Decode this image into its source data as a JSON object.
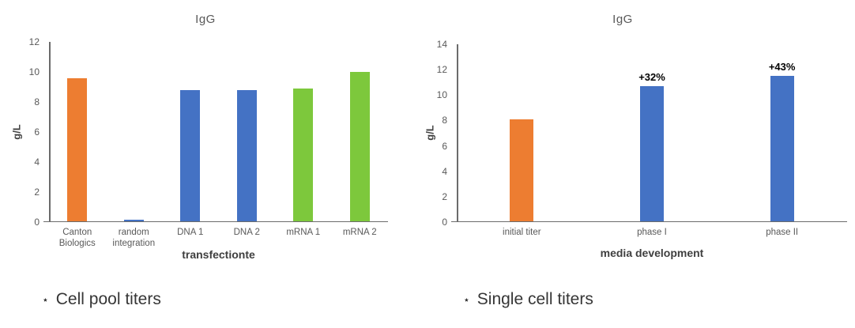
{
  "page": {
    "background": "#ffffff"
  },
  "colors": {
    "orange": "#ED7D31",
    "blue": "#4472C4",
    "green": "#7DC83C",
    "axis_line": "#6B6B6B",
    "axis_text": "#595959",
    "annotation_text": "#000000"
  },
  "captions": [
    {
      "marker": "⋆",
      "text": "Cell pool titers"
    },
    {
      "marker": "⋆",
      "text": "Single cell titers"
    }
  ],
  "chart_data": [
    {
      "type": "bar",
      "title": "IgG",
      "xlabel": "transfectionte",
      "ylabel": "g/L",
      "ylim": [
        0,
        12
      ],
      "ytick_step": 2,
      "grid": false,
      "legend": "none",
      "categories": [
        "Canton Biologics",
        "random integration",
        "DNA 1",
        "DNA 2",
        "mRNA 1",
        "mRNA 2"
      ],
      "values": [
        9.5,
        0.1,
        8.7,
        8.7,
        8.8,
        9.9
      ],
      "bar_colors": [
        "#ED7D31",
        "#4472C4",
        "#4472C4",
        "#4472C4",
        "#7DC83C",
        "#7DC83C"
      ],
      "annotations": [
        "",
        "",
        "",
        "",
        "",
        ""
      ]
    },
    {
      "type": "bar",
      "title": "IgG",
      "xlabel": "media development",
      "ylabel": "g/L",
      "ylim": [
        0,
        14
      ],
      "ytick_step": 2,
      "grid": false,
      "legend": "none",
      "categories": [
        "initial titer",
        "phase I",
        "phase II"
      ],
      "values": [
        8,
        10.6,
        11.4
      ],
      "bar_colors": [
        "#ED7D31",
        "#4472C4",
        "#4472C4"
      ],
      "annotations": [
        "",
        "+32%",
        "+43%"
      ]
    }
  ]
}
